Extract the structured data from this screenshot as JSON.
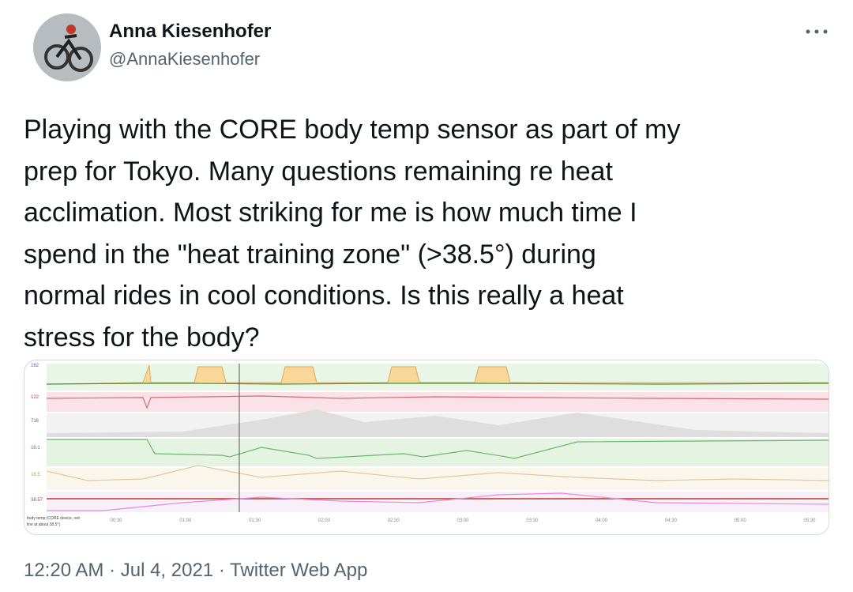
{
  "author": {
    "name": "Anna Kiesenhofer",
    "handle": "@AnnaKiesenhofer"
  },
  "tweet": {
    "lines": [
      "Playing with the CORE body temp sensor as part of my",
      "prep for Tokyo. Many questions remaining re heat",
      "acclimation. Most striking for me is how much time I",
      "spend in the \"heat training zone\" (>38.5°) during",
      "normal rides in cool conditions. Is this really a heat",
      "stress for the body?"
    ]
  },
  "image": {
    "side_labels": [
      "162",
      "122",
      "716",
      "16.1",
      "18.5",
      "38.57"
    ],
    "time_labels": [
      "00:30",
      "01:00",
      "01:30",
      "02:00",
      "02:30",
      "03:00",
      "03:30",
      "04:00",
      "04:30",
      "05:00",
      "05:30"
    ],
    "caption": [
      "body temp (CORE device, red",
      "line at about 38.5°)"
    ]
  },
  "footer": "12:20 AM · Jul 4, 2021 · Twitter Web App"
}
